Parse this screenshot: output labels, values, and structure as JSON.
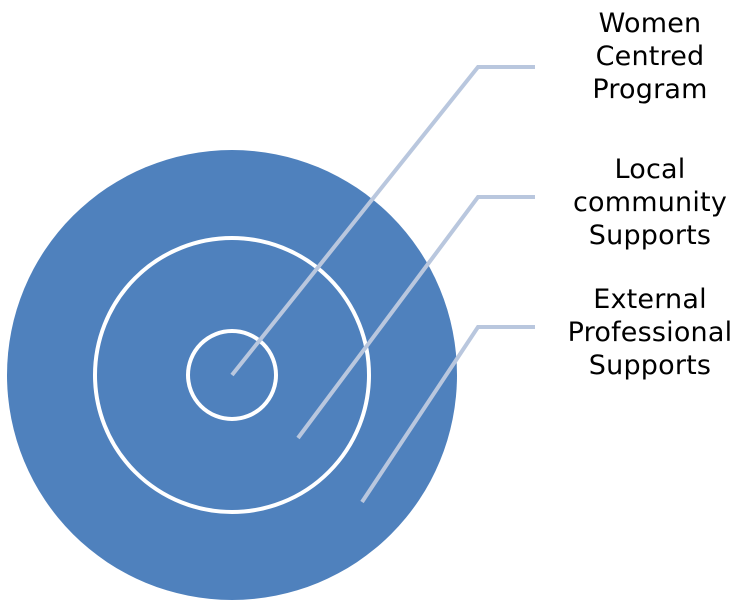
{
  "diagram": {
    "type": "concentric-circles",
    "colors": {
      "outer_fill": "#4F81BD",
      "ring_stroke": "#FFFFFF",
      "leader_line": "#B9C7DE"
    },
    "layers": [
      {
        "lines": [
          "Women",
          "Centred",
          "Program"
        ]
      },
      {
        "lines": [
          "Local",
          "community",
          "Supports"
        ]
      },
      {
        "lines": [
          "External",
          "Professional",
          "Supports"
        ]
      }
    ]
  }
}
